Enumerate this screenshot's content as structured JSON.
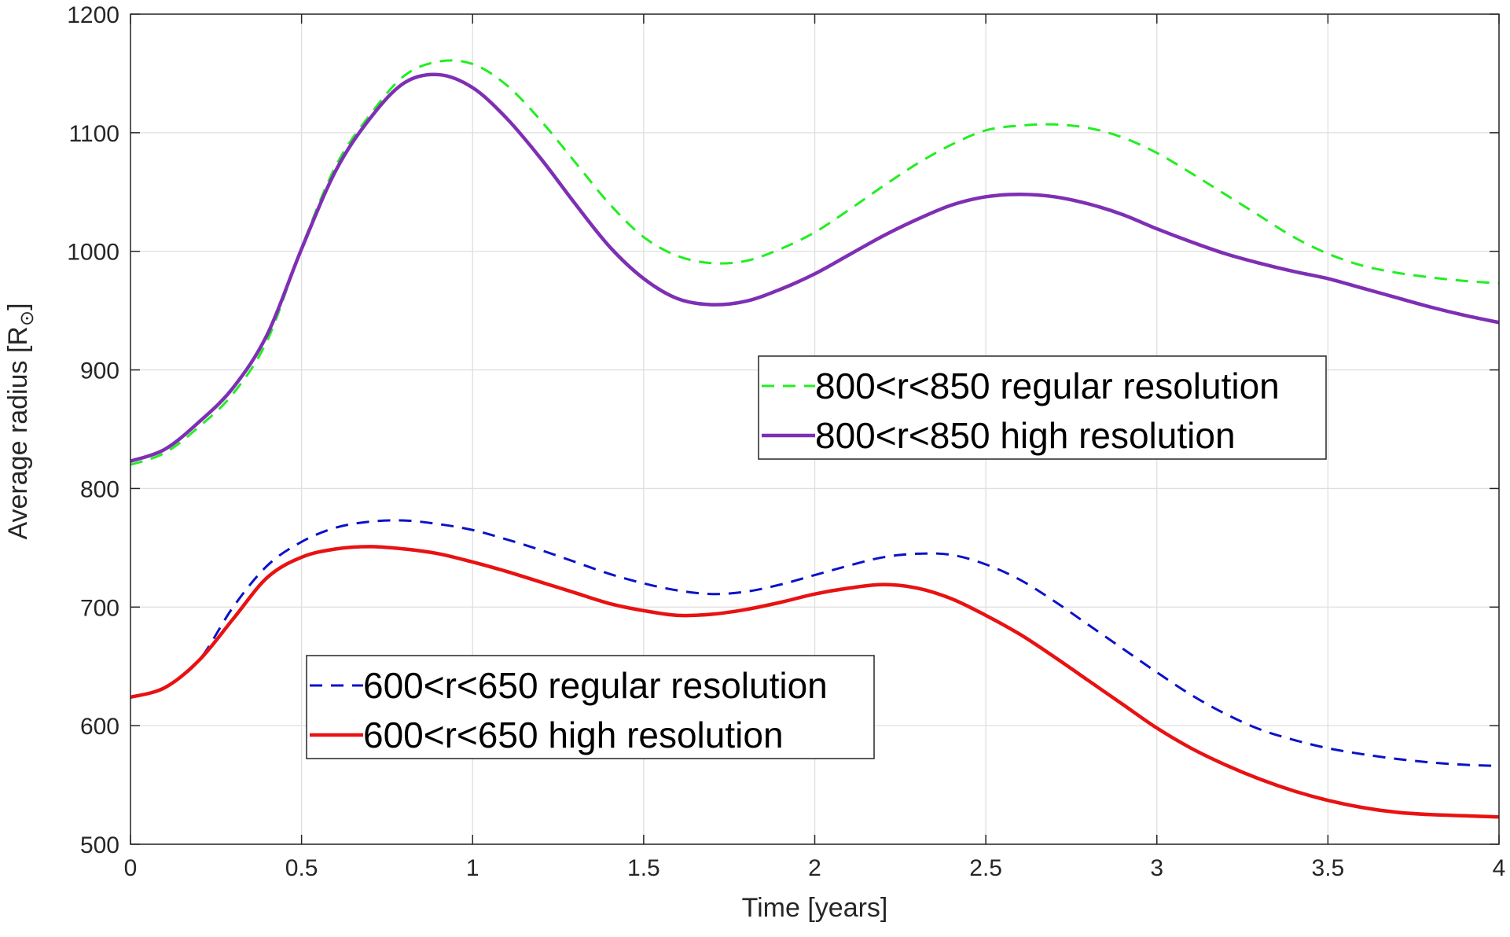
{
  "chart_data": {
    "type": "line",
    "title": "",
    "xlabel": "Time [years]",
    "ylabel": "Average radius [R",
    "ylabel_subscript": "⊙",
    "ylabel_close": "]",
    "xlim": [
      0,
      4
    ],
    "ylim": [
      500,
      1200
    ],
    "grid": true,
    "x_ticks": [
      0,
      0.5,
      1,
      1.5,
      2,
      2.5,
      3,
      3.5,
      4
    ],
    "x_tick_labels": [
      "0",
      "0.5",
      "1",
      "1.5",
      "2",
      "2.5",
      "3",
      "3.5",
      "4"
    ],
    "y_ticks": [
      500,
      600,
      700,
      800,
      900,
      1000,
      1100,
      1200
    ],
    "y_tick_labels": [
      "500",
      "600",
      "700",
      "800",
      "900",
      "1000",
      "1100",
      "1200"
    ],
    "series": [
      {
        "name": "800<r<850 regular resolution",
        "color": "#22ee22",
        "dash": "dashed",
        "x": [
          0,
          0.1,
          0.2,
          0.3,
          0.4,
          0.5,
          0.6,
          0.7,
          0.8,
          0.9,
          1.0,
          1.1,
          1.2,
          1.3,
          1.4,
          1.5,
          1.6,
          1.7,
          1.8,
          1.9,
          2.0,
          2.1,
          2.2,
          2.3,
          2.4,
          2.5,
          2.6,
          2.7,
          2.8,
          2.9,
          3.0,
          3.1,
          3.2,
          3.3,
          3.4,
          3.5,
          3.6,
          3.7,
          3.8,
          3.9,
          4.0
        ],
        "y": [
          820,
          830,
          852,
          880,
          925,
          1003,
          1072,
          1115,
          1148,
          1160,
          1158,
          1140,
          1110,
          1075,
          1040,
          1012,
          996,
          990,
          992,
          1002,
          1016,
          1035,
          1055,
          1074,
          1090,
          1102,
          1106,
          1107,
          1104,
          1096,
          1083,
          1066,
          1048,
          1030,
          1012,
          998,
          988,
          982,
          978,
          975,
          973
        ]
      },
      {
        "name": "800<r<850 high resolution",
        "color": "#7e2fb4",
        "dash": "solid",
        "x": [
          0,
          0.1,
          0.2,
          0.3,
          0.4,
          0.5,
          0.6,
          0.7,
          0.8,
          0.9,
          1.0,
          1.1,
          1.2,
          1.3,
          1.4,
          1.5,
          1.6,
          1.7,
          1.8,
          1.9,
          2.0,
          2.1,
          2.2,
          2.3,
          2.4,
          2.5,
          2.6,
          2.7,
          2.8,
          2.9,
          3.0,
          3.1,
          3.2,
          3.3,
          3.4,
          3.5,
          3.6,
          3.7,
          3.8,
          3.9,
          4.0
        ],
        "y": [
          823,
          833,
          856,
          885,
          930,
          1002,
          1068,
          1112,
          1142,
          1149,
          1138,
          1112,
          1078,
          1040,
          1004,
          977,
          960,
          955,
          958,
          968,
          981,
          997,
          1013,
          1027,
          1039,
          1046,
          1048,
          1046,
          1040,
          1031,
          1019,
          1008,
          998,
          990,
          983,
          977,
          969,
          961,
          953,
          946,
          940
        ]
      },
      {
        "name": "600<r<650 regular resolution",
        "color": "#0a12c8",
        "dash": "dashed",
        "x": [
          0,
          0.1,
          0.2,
          0.3,
          0.4,
          0.5,
          0.6,
          0.7,
          0.8,
          0.9,
          1.0,
          1.1,
          1.2,
          1.3,
          1.4,
          1.5,
          1.6,
          1.7,
          1.8,
          1.9,
          2.0,
          2.1,
          2.2,
          2.3,
          2.4,
          2.5,
          2.6,
          2.7,
          2.8,
          2.9,
          3.0,
          3.1,
          3.2,
          3.3,
          3.4,
          3.5,
          3.6,
          3.7,
          3.8,
          3.9,
          4.0
        ],
        "y": [
          624,
          632,
          655,
          700,
          735,
          755,
          767,
          772,
          773,
          770,
          765,
          757,
          748,
          738,
          728,
          720,
          714,
          711,
          713,
          719,
          727,
          735,
          742,
          745,
          744,
          736,
          723,
          705,
          685,
          665,
          645,
          626,
          610,
          597,
          588,
          581,
          576,
          572,
          569,
          567,
          566
        ]
      },
      {
        "name": "600<r<650 high resolution",
        "color": "#e81212",
        "dash": "solid",
        "x": [
          0,
          0.1,
          0.2,
          0.3,
          0.4,
          0.5,
          0.6,
          0.7,
          0.8,
          0.9,
          1.0,
          1.1,
          1.2,
          1.3,
          1.4,
          1.5,
          1.6,
          1.7,
          1.8,
          1.9,
          2.0,
          2.1,
          2.2,
          2.3,
          2.4,
          2.5,
          2.6,
          2.7,
          2.8,
          2.9,
          3.0,
          3.1,
          3.2,
          3.3,
          3.4,
          3.5,
          3.6,
          3.7,
          3.8,
          3.9,
          4.0
        ],
        "y": [
          624,
          632,
          655,
          690,
          725,
          742,
          749,
          751,
          749,
          745,
          738,
          730,
          721,
          712,
          703,
          697,
          693,
          694,
          698,
          704,
          711,
          716,
          719,
          716,
          707,
          693,
          677,
          658,
          638,
          618,
          598,
          581,
          567,
          555,
          545,
          537,
          531,
          527,
          525,
          524,
          523
        ]
      }
    ],
    "legends": [
      {
        "placement": "center-right",
        "entries": [
          0,
          1
        ]
      },
      {
        "placement": "bottom-left",
        "entries": [
          2,
          3
        ]
      }
    ]
  }
}
